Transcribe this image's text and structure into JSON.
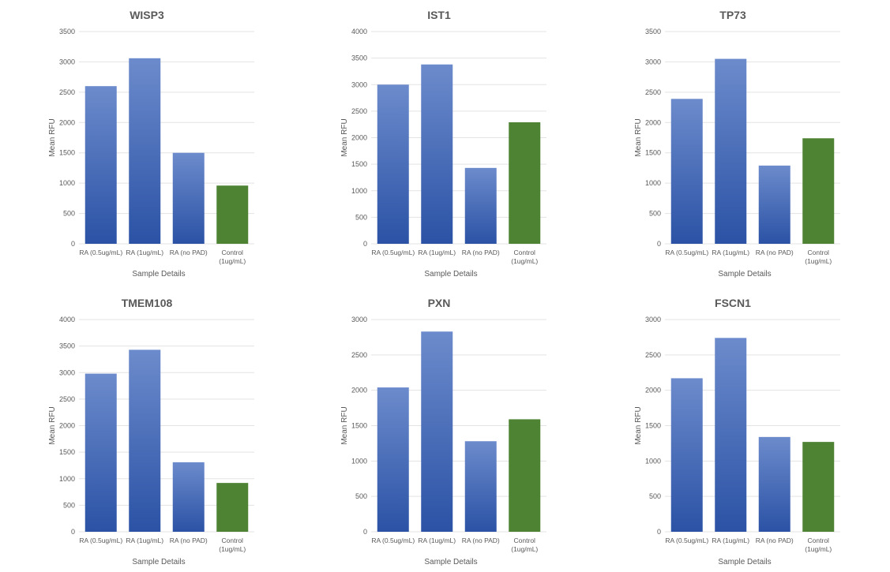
{
  "chart_data": [
    {
      "type": "bar",
      "title": "WISP3",
      "xlabel": "Sample Details",
      "ylabel": "Mean RFU",
      "ylim": [
        0,
        3500
      ],
      "yticks": [
        0,
        500,
        1000,
        1500,
        2000,
        2500,
        3000,
        3500
      ],
      "categories": [
        "RA (0.5ug/mL)",
        "RA (1ug/mL)",
        "RA (no PAD)",
        "Control (1ug/mL)"
      ],
      "values": [
        2600,
        3060,
        1500,
        960
      ],
      "grid": true
    },
    {
      "type": "bar",
      "title": "IST1",
      "xlabel": "Sample Details",
      "ylabel": "Mean RFU",
      "ylim": [
        0,
        4000
      ],
      "yticks": [
        0,
        500,
        1000,
        1500,
        2000,
        2500,
        3000,
        3500,
        4000
      ],
      "categories": [
        "RA (0.5ug/mL)",
        "RA (1ug/mL)",
        "RA (no PAD)",
        "Control (1ug/mL)"
      ],
      "values": [
        3000,
        3380,
        1430,
        2290
      ],
      "grid": true
    },
    {
      "type": "bar",
      "title": "TP73",
      "xlabel": "Sample Details",
      "ylabel": "Mean RFU",
      "ylim": [
        0,
        3500
      ],
      "yticks": [
        0,
        500,
        1000,
        1500,
        2000,
        2500,
        3000,
        3500
      ],
      "categories": [
        "RA (0.5ug/mL)",
        "RA (1ug/mL)",
        "RA (no PAD)",
        "Control (1ug/mL)"
      ],
      "values": [
        2390,
        3050,
        1290,
        1740
      ],
      "grid": true
    },
    {
      "type": "bar",
      "title": "TMEM108",
      "xlabel": "Sample Details",
      "ylabel": "Mean RFU",
      "ylim": [
        0,
        4000
      ],
      "yticks": [
        0,
        500,
        1000,
        1500,
        2000,
        2500,
        3000,
        3500,
        4000
      ],
      "categories": [
        "RA (0.5ug/mL)",
        "RA (1ug/mL)",
        "RA (no PAD)",
        "Control (1ug/mL)"
      ],
      "values": [
        2980,
        3430,
        1310,
        920
      ],
      "grid": true
    },
    {
      "type": "bar",
      "title": "PXN",
      "xlabel": "Sample Details",
      "ylabel": "Mean RFU",
      "ylim": [
        0,
        3000
      ],
      "yticks": [
        0,
        500,
        1000,
        1500,
        2000,
        2500,
        3000
      ],
      "categories": [
        "RA (0.5ug/mL)",
        "RA (1ug/mL)",
        "RA (no PAD)",
        "Control (1ug/mL)"
      ],
      "values": [
        2040,
        2830,
        1280,
        1590
      ],
      "grid": true
    },
    {
      "type": "bar",
      "title": "FSCN1",
      "xlabel": "Sample Details",
      "ylabel": "Mean RFU",
      "ylim": [
        0,
        3000
      ],
      "yticks": [
        0,
        500,
        1000,
        1500,
        2000,
        2500,
        3000
      ],
      "categories": [
        "RA (0.5ug/mL)",
        "RA (1ug/mL)",
        "RA (no PAD)",
        "Control (1ug/mL)"
      ],
      "values": [
        2170,
        2740,
        1340,
        1270
      ],
      "grid": true
    }
  ],
  "colors": {
    "treatment_top": "#6c8bcc",
    "treatment_bottom": "#2b52a5",
    "control": "#4e8333",
    "grid": "#e3e3e3",
    "text": "#595959"
  }
}
